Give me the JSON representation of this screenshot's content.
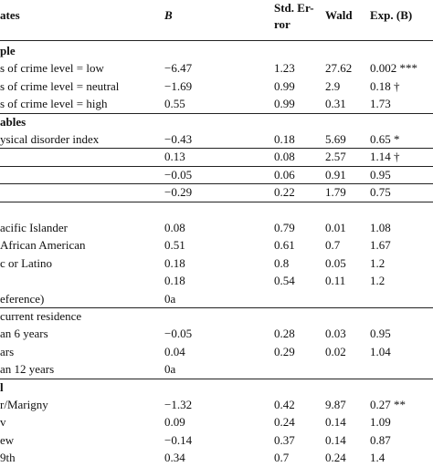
{
  "header": {
    "col_label": "ates",
    "col_b": "B",
    "col_se_line1": "Std. Er-",
    "col_se_line2": "ror",
    "col_wald": "Wald",
    "col_exp": "Exp. (B)"
  },
  "rows": [
    {
      "label": "ple",
      "bold": true
    },
    {
      "label": "s of crime level = low",
      "b": "−6.47",
      "se": "1.23",
      "wald": "27.62",
      "exp": "0.002 ***"
    },
    {
      "label": "s of crime level = neutral",
      "b": "−1.69",
      "se": "0.99",
      "wald": "2.9",
      "exp": "0.18 †"
    },
    {
      "label": "s of crime level = high",
      "b": "0.55",
      "se": "0.99",
      "wald": "0.31",
      "exp": "1.73"
    },
    {
      "label": "ables",
      "bold": true
    },
    {
      "label": "ysical disorder index",
      "b": "−0.43",
      "se": "0.18",
      "wald": "5.69",
      "exp": "0.65 *"
    },
    {
      "label": "",
      "b": "0.13",
      "se": "0.08",
      "wald": "2.57",
      "exp": "1.14 †"
    },
    {
      "label": "",
      "b": "−0.05",
      "se": "0.06",
      "wald": "0.91",
      "exp": "0.95"
    },
    {
      "label": "",
      "b": "−0.29",
      "se": "0.22",
      "wald": "1.79",
      "exp": "0.75"
    },
    {
      "label": ""
    },
    {
      "label": "acific Islander",
      "b": "0.08",
      "se": "0.79",
      "wald": "0.01",
      "exp": "1.08"
    },
    {
      "label": "African American",
      "b": "0.51",
      "se": "0.61",
      "wald": "0.7",
      "exp": "1.67"
    },
    {
      "label": "c or Latino",
      "b": "0.18",
      "se": "0.8",
      "wald": "0.05",
      "exp": "1.2"
    },
    {
      "label": "",
      "b": "0.18",
      "se": "0.54",
      "wald": "0.11",
      "exp": "1.2"
    },
    {
      "label": "eference)",
      "b": "0a"
    },
    {
      "label": "current residence"
    },
    {
      "label": "an 6 years",
      "b": "−0.05",
      "se": "0.28",
      "wald": "0.03",
      "exp": "0.95"
    },
    {
      "label": "ars",
      "b": "0.04",
      "se": "0.29",
      "wald": "0.02",
      "exp": "1.04"
    },
    {
      "label": "an 12 years",
      "b": "0a"
    },
    {
      "label": "l",
      "bold": true
    },
    {
      "label": "r/Marigny",
      "b": "−1.32",
      "se": "0.42",
      "wald": "9.87",
      "exp": "0.27 **"
    },
    {
      "label": "v",
      "b": "0.09",
      "se": "0.24",
      "wald": "0.14",
      "exp": "1.09"
    },
    {
      "label": "ew",
      "b": "−0.14",
      "se": "0.37",
      "wald": "0.14",
      "exp": "0.87"
    },
    {
      "label": "9th",
      "b": "0.34",
      "se": "0.7",
      "wald": "0.24",
      "exp": "1.4"
    }
  ]
}
